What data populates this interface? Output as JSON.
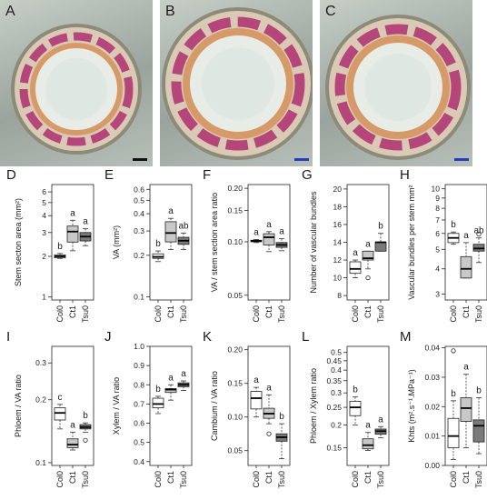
{
  "photos": [
    {
      "letter": "A",
      "scale_bar_color": "#111111"
    },
    {
      "letter": "B",
      "scale_bar_color": "#1f3fbf"
    },
    {
      "letter": "C",
      "scale_bar_color": "#1f3fbf"
    }
  ],
  "box_colors": {
    "Col0": "#ffffff",
    "Ct1": "#c8c8c8",
    "Tsu0": "#7a7a7a"
  },
  "chart_data": [
    {
      "letter": "D",
      "type": "box",
      "ylabel": "Stem secton area (mm²)",
      "scale": "log",
      "ylim": [
        0.95,
        6.8
      ],
      "ticks": [
        1,
        2,
        3,
        4,
        5,
        6
      ],
      "tick_labels": [
        "1",
        "2",
        "3",
        "4",
        "5",
        "6"
      ],
      "categories": [
        "Col0",
        "Ct1",
        "Tsu0"
      ],
      "letters": [
        "b",
        "a",
        "a"
      ],
      "boxes": [
        {
          "min": 1.93,
          "q1": 1.95,
          "median": 2.0,
          "q3": 2.05,
          "max": 2.1,
          "outliers": []
        },
        {
          "min": 2.2,
          "q1": 2.55,
          "median": 3.05,
          "q3": 3.35,
          "max": 3.7,
          "outliers": []
        },
        {
          "min": 2.4,
          "q1": 2.6,
          "median": 2.8,
          "q3": 3.0,
          "max": 3.2,
          "outliers": []
        }
      ]
    },
    {
      "letter": "E",
      "type": "box",
      "ylabel": "VA (mm²)",
      "scale": "log",
      "ylim": [
        0.095,
        0.65
      ],
      "ticks": [
        0.1,
        0.2,
        0.3,
        0.4,
        0.5,
        0.6
      ],
      "tick_labels": [
        "0.1",
        "0.2",
        "0.3",
        "0.4",
        "0.5",
        "0.6"
      ],
      "categories": [
        "Col0",
        "Ct1",
        "Tsu0"
      ],
      "letters": [
        "b",
        "a",
        "ab"
      ],
      "boxes": [
        {
          "min": 0.18,
          "q1": 0.19,
          "median": 0.195,
          "q3": 0.205,
          "max": 0.215,
          "outliers": []
        },
        {
          "min": 0.22,
          "q1": 0.25,
          "median": 0.29,
          "q3": 0.35,
          "max": 0.37,
          "outliers": []
        },
        {
          "min": 0.22,
          "q1": 0.24,
          "median": 0.255,
          "q3": 0.27,
          "max": 0.29,
          "outliers": []
        }
      ]
    },
    {
      "letter": "F",
      "type": "box",
      "ylabel": "VA / stem section area ratio",
      "scale": "log",
      "ylim": [
        0.047,
        0.21
      ],
      "ticks": [
        0.05,
        0.1,
        0.15,
        0.2
      ],
      "tick_labels": [
        "0.05",
        "0.10",
        "0.15",
        "0.20"
      ],
      "categories": [
        "Col0",
        "Ct1",
        "Tsu0"
      ],
      "letters": [
        "a",
        "a",
        "a"
      ],
      "boxes": [
        {
          "min": 0.099,
          "q1": 0.1,
          "median": 0.101,
          "q3": 0.102,
          "max": 0.103,
          "outliers": []
        },
        {
          "min": 0.088,
          "q1": 0.096,
          "median": 0.106,
          "q3": 0.111,
          "max": 0.114,
          "outliers": []
        },
        {
          "min": 0.089,
          "q1": 0.093,
          "median": 0.096,
          "q3": 0.099,
          "max": 0.104,
          "outliers": []
        }
      ]
    },
    {
      "letter": "G",
      "type": "box",
      "ylabel": "Number of vascular bundles",
      "scale": "linear",
      "ylim": [
        7.5,
        20.5
      ],
      "ticks": [
        8,
        10,
        12,
        14,
        16,
        18,
        20
      ],
      "tick_labels": [
        "8",
        "10",
        "12",
        "14",
        "16",
        "18",
        "20"
      ],
      "categories": [
        "Col0",
        "Ct1",
        "Tsu0"
      ],
      "letters": [
        "a",
        "a",
        "b"
      ],
      "boxes": [
        {
          "min": 10.0,
          "q1": 10.5,
          "median": 11.0,
          "q3": 11.8,
          "max": 12.0,
          "outliers": []
        },
        {
          "min": 11.0,
          "q1": 12.0,
          "median": 12.2,
          "q3": 13.0,
          "max": 13.0,
          "outliers": [
            10
          ]
        },
        {
          "min": 13.0,
          "q1": 13.0,
          "median": 14.0,
          "q3": 14.0,
          "max": 15.0,
          "outliers": []
        }
      ]
    },
    {
      "letter": "H",
      "type": "box",
      "ylabel": "Vascular bundles per stem mm²",
      "scale": "log",
      "ylim": [
        2.8,
        10.5
      ],
      "ticks": [
        3,
        4,
        5,
        6,
        7,
        8,
        9,
        10
      ],
      "tick_labels": [
        "3",
        "4",
        "5",
        "6",
        "7",
        "8",
        "9",
        "10"
      ],
      "categories": [
        "Col0",
        "Ct1",
        "Tsu0"
      ],
      "letters": [
        "b",
        "a",
        "ab"
      ],
      "boxes": [
        {
          "min": 5.3,
          "q1": 5.4,
          "median": 5.7,
          "q3": 6.0,
          "max": 6.1,
          "outliers": []
        },
        {
          "min": 3.6,
          "q1": 3.6,
          "median": 4.0,
          "q3": 4.6,
          "max": 5.4,
          "outliers": []
        },
        {
          "min": 4.3,
          "q1": 4.9,
          "median": 5.05,
          "q3": 5.3,
          "max": 5.7,
          "outliers": [
            5.95
          ]
        }
      ]
    },
    {
      "letter": "I",
      "type": "box",
      "ylabel": "Phloem / VA ratio",
      "scale": "log",
      "ylim": [
        0.097,
        0.36
      ],
      "ticks": [
        0.1,
        0.2,
        0.3
      ],
      "tick_labels": [
        "0.1",
        "0.2",
        "0.3"
      ],
      "categories": [
        "Col0",
        "Ct1",
        "Tsu0"
      ],
      "letters": [
        "c",
        "a",
        "b"
      ],
      "boxes": [
        {
          "min": 0.145,
          "q1": 0.16,
          "median": 0.173,
          "q3": 0.183,
          "max": 0.19,
          "outliers": []
        },
        {
          "min": 0.115,
          "q1": 0.118,
          "median": 0.122,
          "q3": 0.13,
          "max": 0.14,
          "outliers": []
        },
        {
          "min": 0.14,
          "q1": 0.145,
          "median": 0.148,
          "q3": 0.152,
          "max": 0.155,
          "outliers": [
            0.128
          ]
        }
      ]
    },
    {
      "letter": "J",
      "type": "box",
      "ylabel": "Xylem / VA ratio",
      "scale": "linear",
      "ylim": [
        0.38,
        1.0
      ],
      "ticks": [
        0.4,
        0.5,
        0.6,
        0.7,
        0.8,
        0.9,
        1.0
      ],
      "tick_labels": [
        "0.4",
        "0.5",
        "0.6",
        "0.7",
        "0.8",
        "0.9",
        "1.0"
      ],
      "categories": [
        "Col0",
        "Ct1",
        "Tsu0"
      ],
      "letters": [
        "b",
        "a",
        "a"
      ],
      "boxes": [
        {
          "min": 0.65,
          "q1": 0.68,
          "median": 0.7,
          "q3": 0.73,
          "max": 0.74,
          "outliers": []
        },
        {
          "min": 0.72,
          "q1": 0.76,
          "median": 0.775,
          "q3": 0.78,
          "max": 0.8,
          "outliers": []
        },
        {
          "min": 0.77,
          "q1": 0.79,
          "median": 0.8,
          "q3": 0.81,
          "max": 0.82,
          "outliers": []
        }
      ]
    },
    {
      "letter": "K",
      "type": "box",
      "ylabel": "Cambium / VA ratio",
      "scale": "linear",
      "ylim": [
        0.028,
        0.205
      ],
      "ticks": [
        0.05,
        0.1,
        0.15,
        0.2
      ],
      "tick_labels": [
        "0.05",
        "0.10",
        "0.15",
        "0.20"
      ],
      "categories": [
        "Col0",
        "Ct1",
        "Tsu0"
      ],
      "letters": [
        "a",
        "a",
        "b"
      ],
      "boxes": [
        {
          "min": 0.1,
          "q1": 0.112,
          "median": 0.128,
          "q3": 0.138,
          "max": 0.144,
          "outliers": []
        },
        {
          "min": 0.09,
          "q1": 0.098,
          "median": 0.105,
          "q3": 0.113,
          "max": 0.133,
          "outliers": [
            0.075
          ]
        },
        {
          "min": 0.038,
          "q1": 0.064,
          "median": 0.07,
          "q3": 0.075,
          "max": 0.09,
          "outliers": []
        }
      ]
    },
    {
      "letter": "L",
      "type": "box",
      "ylabel": "Phloem / Xylem  ratio",
      "scale": "log",
      "ylim": [
        0.12,
        0.54
      ],
      "ticks": [
        0.15,
        0.2,
        0.25,
        0.3,
        0.35,
        0.4,
        0.45,
        0.5
      ],
      "tick_labels": [
        "0.15",
        "0.2",
        "0.25",
        "0.3",
        "0.35",
        "0.4",
        "0.45",
        "0.5"
      ],
      "categories": [
        "Col0",
        "Ct1",
        "Tsu0"
      ],
      "letters": [
        "b",
        "a",
        "a"
      ],
      "boxes": [
        {
          "min": 0.2,
          "q1": 0.225,
          "median": 0.25,
          "q3": 0.27,
          "max": 0.285,
          "outliers": []
        },
        {
          "min": 0.145,
          "q1": 0.148,
          "median": 0.155,
          "q3": 0.168,
          "max": 0.182,
          "outliers": []
        },
        {
          "min": 0.17,
          "q1": 0.178,
          "median": 0.185,
          "q3": 0.19,
          "max": 0.196,
          "outliers": []
        }
      ]
    },
    {
      "letter": "M",
      "type": "box",
      "ylabel": "Khts (m².s⁻¹.MPa⁻¹)",
      "scale": "linear",
      "ylim": [
        0.0,
        0.0405
      ],
      "ticks": [
        0.0,
        0.01,
        0.02,
        0.03,
        0.04
      ],
      "tick_labels": [
        "0.00",
        "0.01",
        "0.02",
        "0.03",
        "0.04"
      ],
      "categories": [
        "Col0",
        "Ct1",
        "Tsu0"
      ],
      "letters": [
        "b",
        "a",
        "b"
      ],
      "boxes": [
        {
          "min": 0.002,
          "q1": 0.006,
          "median": 0.01,
          "q3": 0.016,
          "max": 0.022,
          "outliers": [
            0.039
          ]
        },
        {
          "min": 0.006,
          "q1": 0.015,
          "median": 0.0195,
          "q3": 0.023,
          "max": 0.031,
          "outliers": []
        },
        {
          "min": 0.004,
          "q1": 0.008,
          "median": 0.0135,
          "q3": 0.0155,
          "max": 0.023,
          "outliers": []
        }
      ]
    }
  ]
}
